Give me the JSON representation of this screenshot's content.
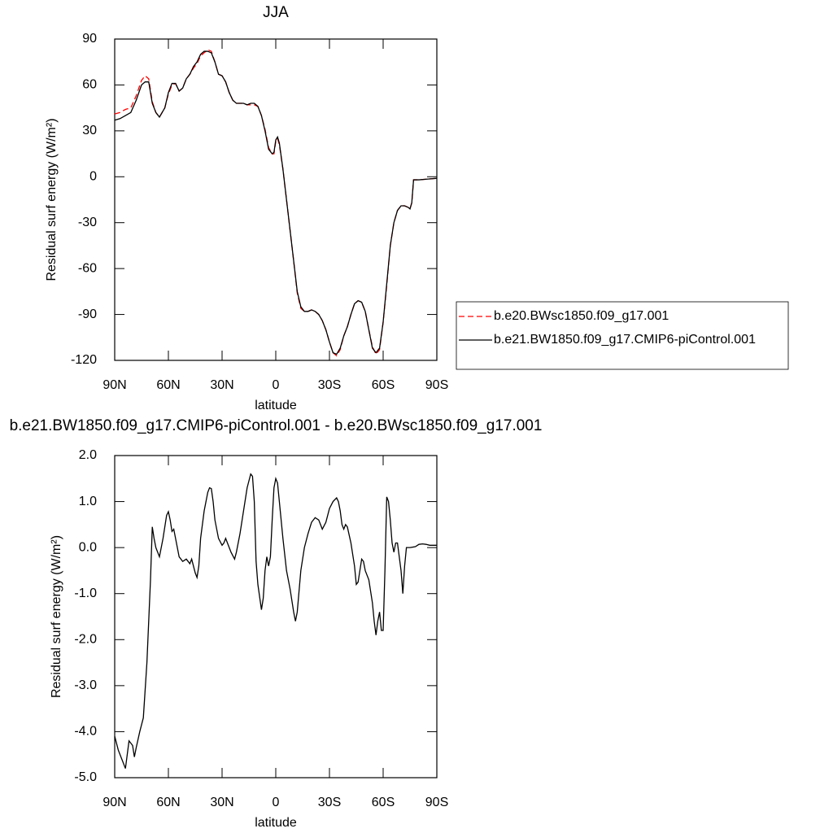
{
  "chart_data": [
    {
      "type": "line",
      "title": "JJA",
      "xlabel": "latitude",
      "ylabel": "Residual surf energy (W/m²)",
      "xlim": [
        90,
        -90
      ],
      "xticks": [
        {
          "value": 90,
          "label": "90N"
        },
        {
          "value": 60,
          "label": "60N"
        },
        {
          "value": 30,
          "label": "30N"
        },
        0,
        {
          "value": -30,
          "label": "30S"
        },
        {
          "value": -60,
          "label": "60S"
        },
        {
          "value": -90,
          "label": "90S"
        }
      ],
      "ylim": [
        -120,
        90
      ],
      "yticks": [
        90,
        60,
        30,
        0,
        -30,
        -60,
        -90,
        -120
      ],
      "x": [
        90,
        87,
        84,
        81,
        78,
        75,
        73,
        71,
        69,
        67,
        65,
        62,
        60,
        58,
        56,
        54,
        52,
        50,
        48,
        46,
        44,
        42,
        40,
        38,
        36,
        34,
        32,
        30,
        28,
        26,
        24,
        22,
        20,
        18,
        16,
        14,
        12,
        10,
        8,
        6,
        4,
        2,
        1,
        0,
        -1,
        -2,
        -4,
        -6,
        -8,
        -10,
        -12,
        -14,
        -16,
        -18,
        -20,
        -22,
        -24,
        -26,
        -28,
        -30,
        -32,
        -34,
        -36,
        -38,
        -40,
        -42,
        -44,
        -46,
        -48,
        -50,
        -52,
        -54,
        -56,
        -58,
        -60,
        -62,
        -64,
        -66,
        -68,
        -70,
        -72,
        -74,
        -75,
        -76,
        -77,
        -80,
        -85,
        -90
      ],
      "series": [
        {
          "name": "b.e20.BWsc1850.f09_g17.001",
          "color": "#ff0000",
          "linestyle": "dashed",
          "values": [
            41,
            42,
            44,
            45,
            53,
            63,
            66,
            64,
            49,
            42,
            39,
            45,
            54,
            60,
            61,
            56,
            58,
            64,
            67,
            71,
            74,
            79,
            81,
            83,
            82,
            75,
            67,
            66,
            62,
            55,
            50,
            48,
            48,
            48,
            47,
            47,
            47,
            46,
            40,
            31,
            19,
            15,
            15,
            23,
            25,
            21,
            5,
            -15,
            -35,
            -55,
            -76,
            -86,
            -88,
            -88,
            -87,
            -88,
            -90,
            -94,
            -100,
            -108,
            -115,
            -117,
            -113,
            -104,
            -98,
            -90,
            -83,
            -81,
            -82,
            -88,
            -100,
            -111,
            -116,
            -113,
            -95,
            -71,
            -45,
            -30,
            -22,
            -19,
            -19,
            -20,
            -21,
            -17,
            -2,
            -2,
            -1.5,
            -1
          ]
        },
        {
          "name": "b.e21.BW1850.f09_g17.CMIP6-piControl.001",
          "color": "#000000",
          "linestyle": "solid",
          "values": [
            37,
            38,
            40,
            42,
            50,
            60,
            62,
            62,
            48,
            42,
            39,
            45,
            55,
            61,
            61,
            56,
            58,
            64,
            67,
            72,
            75,
            80,
            82,
            82,
            81,
            75,
            67,
            66,
            62,
            55,
            50,
            48,
            48,
            48,
            47,
            48,
            48,
            46,
            40,
            30,
            18,
            15,
            16,
            24,
            26,
            22,
            5,
            -15,
            -35,
            -55,
            -75,
            -85,
            -88,
            -88,
            -87,
            -88,
            -90,
            -94,
            -100,
            -108,
            -115,
            -116,
            -112,
            -104,
            -98,
            -90,
            -83,
            -81,
            -82,
            -88,
            -100,
            -112,
            -115,
            -112,
            -95,
            -70,
            -45,
            -30,
            -22,
            -19,
            -19,
            -20,
            -21,
            -17,
            -2,
            -2,
            -1.5,
            -1
          ]
        }
      ]
    },
    {
      "type": "line",
      "title": "b.e21.BW1850.f09_g17.CMIP6-piControl.001 - b.e20.BWsc1850.f09_g17.001",
      "xlabel": "latitude",
      "ylabel": "Residual surf energy (W/m²)",
      "xlim": [
        90,
        -90
      ],
      "xticks": [
        {
          "value": 90,
          "label": "90N"
        },
        {
          "value": 60,
          "label": "60N"
        },
        {
          "value": 30,
          "label": "30N"
        },
        0,
        {
          "value": -30,
          "label": "30S"
        },
        {
          "value": -60,
          "label": "60S"
        },
        {
          "value": -90,
          "label": "90S"
        }
      ],
      "ylim": [
        -5,
        2
      ],
      "yticks": [
        {
          "value": 2,
          "label": "2.0"
        },
        {
          "value": 1,
          "label": "1.0"
        },
        {
          "value": 0,
          "label": "0.0"
        },
        {
          "value": -1,
          "label": "-1.0"
        },
        {
          "value": -2,
          "label": "-2.0"
        },
        {
          "value": -3,
          "label": "-3.0"
        },
        {
          "value": -4,
          "label": "-4.0"
        },
        {
          "value": -5,
          "label": "-5.0"
        }
      ],
      "x": [
        90,
        88,
        86,
        84,
        83,
        82,
        80,
        79,
        78,
        76,
        74,
        72,
        70,
        69,
        68,
        67,
        65,
        63,
        61,
        60,
        59,
        58,
        57,
        55,
        54,
        52,
        50,
        48,
        47,
        45,
        44,
        43,
        42,
        40,
        38,
        37,
        36,
        35,
        34,
        32,
        30,
        29,
        28,
        27,
        25,
        23,
        22,
        20,
        18,
        16,
        14,
        13,
        12,
        11,
        10,
        8,
        7,
        6,
        5,
        4,
        3,
        2,
        1,
        0,
        -1,
        -2,
        -4,
        -6,
        -8,
        -10,
        -11,
        -12,
        -14,
        -16,
        -18,
        -20,
        -22,
        -24,
        -26,
        -28,
        -30,
        -32,
        -34,
        -35,
        -36,
        -37,
        -38,
        -39,
        -40,
        -42,
        -44,
        -45,
        -46,
        -48,
        -49,
        -50,
        -52,
        -54,
        -55,
        -56,
        -57,
        -58,
        -59,
        -60,
        -61,
        -62,
        -63,
        -64,
        -65,
        -66,
        -67,
        -68,
        -69,
        -70,
        -71,
        -72,
        -73,
        -75,
        -78,
        -80,
        -82,
        -84,
        -86,
        -90
      ],
      "series": [
        {
          "color": "#000000",
          "linestyle": "solid",
          "values": [
            -4.1,
            -4.4,
            -4.6,
            -4.8,
            -4.5,
            -4.2,
            -4.3,
            -4.55,
            -4.35,
            -4.0,
            -3.7,
            -2.5,
            -0.7,
            0.45,
            0.2,
            0.0,
            -0.2,
            0.2,
            0.7,
            0.78,
            0.6,
            0.35,
            0.4,
            0.0,
            -0.2,
            -0.3,
            -0.25,
            -0.35,
            -0.25,
            -0.55,
            -0.65,
            -0.4,
            0.2,
            0.8,
            1.2,
            1.3,
            1.28,
            1.0,
            0.6,
            0.2,
            0.05,
            0.1,
            0.2,
            0.1,
            -0.1,
            -0.25,
            -0.1,
            0.3,
            0.8,
            1.3,
            1.6,
            1.55,
            1.0,
            -0.3,
            -0.8,
            -1.35,
            -1.1,
            -0.5,
            -0.2,
            -0.4,
            -0.2,
            0.6,
            1.3,
            1.5,
            1.4,
            1.0,
            0.2,
            -0.5,
            -0.9,
            -1.4,
            -1.6,
            -1.4,
            -0.5,
            0.0,
            0.3,
            0.55,
            0.65,
            0.6,
            0.4,
            0.55,
            0.85,
            1.0,
            1.08,
            1.0,
            0.8,
            0.5,
            0.4,
            0.5,
            0.45,
            0.1,
            -0.4,
            -0.8,
            -0.75,
            -0.25,
            -0.3,
            -0.5,
            -0.7,
            -1.2,
            -1.6,
            -1.9,
            -1.6,
            -1.4,
            -1.8,
            -1.8,
            -0.5,
            1.1,
            1.0,
            0.6,
            0.1,
            -0.1,
            0.1,
            0.1,
            -0.2,
            -0.5,
            -1.0,
            -0.4,
            0.0,
            0.0,
            0.02,
            0.07,
            0.08,
            0.07,
            0.05,
            0.05
          ]
        }
      ]
    }
  ]
}
